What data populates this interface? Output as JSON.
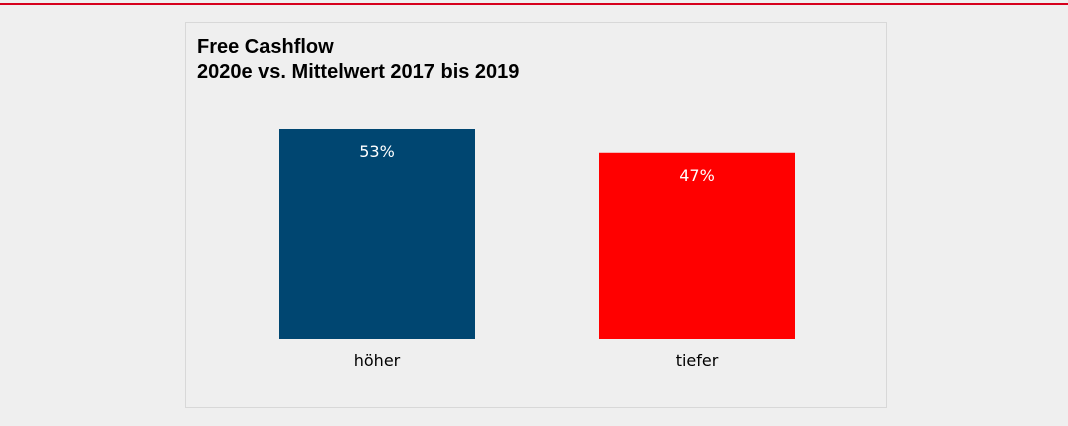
{
  "chart_data": {
    "type": "bar",
    "title": "Free Cashflow",
    "subtitle": "2020e vs. Mittelwert 2017 bis 2019",
    "categories": [
      "höher",
      "tiefer"
    ],
    "values": [
      53,
      47
    ],
    "value_labels": [
      "53%",
      "47%"
    ],
    "colors": [
      "#004671",
      "#ff0000"
    ],
    "ylim": [
      0,
      53
    ],
    "grid": false,
    "legend": "none"
  },
  "colors": {
    "accent_rule": "#d6001c",
    "background": "#efefef"
  }
}
